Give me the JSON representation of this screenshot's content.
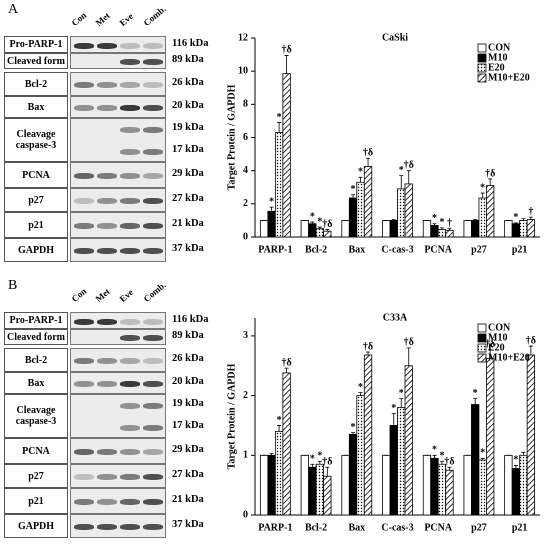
{
  "panels": [
    {
      "letter": "A",
      "lanes": [
        "Con",
        "Met",
        "Eve",
        "Comb."
      ],
      "rows": [
        {
          "label": "Pro-PARP-1",
          "kda": [
            "116 kDa"
          ]
        },
        {
          "label": "Cleaved form",
          "kda": [
            "89 kDa"
          ]
        },
        {
          "label": "Bcl-2",
          "kda": [
            "26 kDa"
          ]
        },
        {
          "label": "Bax",
          "kda": [
            "20 kDa"
          ]
        },
        {
          "label": "Cleavage caspase-3",
          "kda": [
            "19 kDa",
            "17 kDa"
          ]
        },
        {
          "label": "PCNA",
          "kda": [
            "29 kDa"
          ]
        },
        {
          "label": "p27",
          "kda": [
            "27 kDa"
          ]
        },
        {
          "label": "p21",
          "kda": [
            "21 kDa"
          ]
        },
        {
          "label": "GAPDH",
          "kda": [
            "37 kDa"
          ]
        }
      ]
    },
    {
      "letter": "B",
      "lanes": [
        "Con",
        "Met",
        "Eve",
        "Comb."
      ],
      "rows": [
        {
          "label": "Pro-PARP-1",
          "kda": [
            "116 kDa"
          ]
        },
        {
          "label": "Cleaved form",
          "kda": [
            "89 kDa"
          ]
        },
        {
          "label": "Bcl-2",
          "kda": [
            "26 kDa"
          ]
        },
        {
          "label": "Bax",
          "kda": [
            "20 kDa"
          ]
        },
        {
          "label": "Cleavage caspase-3",
          "kda": [
            "19 kDa",
            "17 kDa"
          ]
        },
        {
          "label": "PCNA",
          "kda": [
            "29 kDa"
          ]
        },
        {
          "label": "p27",
          "kda": [
            "27 kDa"
          ]
        },
        {
          "label": "p21",
          "kda": [
            "21 kDa"
          ]
        },
        {
          "label": "GAPDH",
          "kda": [
            "37 kDa"
          ]
        }
      ]
    }
  ],
  "chart_data": [
    {
      "type": "bar",
      "title": "CaSki",
      "y_label": "Target Protein / GAPDH",
      "categories": [
        "PARP-1",
        "Bcl-2",
        "Bax",
        "C-cas-3",
        "PCNA",
        "p27",
        "p21"
      ],
      "ylim": [
        0,
        12
      ],
      "yticks": [
        0,
        2,
        4,
        6,
        8,
        10,
        12
      ],
      "legend": "top-right",
      "series": [
        {
          "name": "CON",
          "color": "#ffffff",
          "pattern": "solid",
          "values": [
            1,
            1,
            1,
            1,
            1,
            1,
            1
          ],
          "errors": [
            0,
            0,
            0,
            0,
            0,
            0,
            0
          ],
          "annotations": [
            null,
            null,
            null,
            null,
            null,
            null,
            null
          ]
        },
        {
          "name": "M10",
          "color": "#000000",
          "pattern": "solid",
          "values": [
            1.55,
            0.8,
            2.35,
            1.0,
            0.7,
            1.0,
            0.8
          ],
          "errors": [
            0.25,
            0.1,
            0.2,
            0.05,
            0.1,
            0.05,
            0.05
          ],
          "annotations": [
            "*",
            "*",
            "*",
            null,
            "*",
            null,
            "*"
          ]
        },
        {
          "name": "E20",
          "color": "#000000",
          "pattern": "dots",
          "values": [
            6.3,
            0.5,
            3.3,
            2.9,
            0.45,
            2.35,
            1.0
          ],
          "errors": [
            0.6,
            0.1,
            0.3,
            0.8,
            0.1,
            0.3,
            0.1
          ],
          "annotations": [
            "*",
            "*",
            "*",
            "*",
            "*",
            "*",
            null
          ]
        },
        {
          "name": "M10+E20",
          "color": "#000000",
          "pattern": "hatch",
          "values": [
            9.85,
            0.35,
            4.25,
            3.2,
            0.4,
            3.1,
            1.05
          ],
          "errors": [
            1.1,
            0.1,
            0.5,
            0.8,
            0.1,
            0.4,
            0.15
          ],
          "annotations": [
            "†δ",
            "†δ",
            "†δ",
            "†δ",
            "†",
            "†δ",
            "†"
          ]
        }
      ]
    },
    {
      "type": "bar",
      "title": "C33A",
      "y_label": "Target Protein / GAPDH",
      "categories": [
        "PARP-1",
        "Bcl-2",
        "Bax",
        "C-cas-3",
        "PCNA",
        "p27",
        "p21"
      ],
      "ylim": [
        0,
        3.3
      ],
      "yticks": [
        0,
        1,
        2,
        3
      ],
      "legend": "top-right",
      "series": [
        {
          "name": "CON",
          "color": "#ffffff",
          "pattern": "solid",
          "values": [
            1,
            1,
            1,
            1,
            1,
            1,
            1
          ],
          "errors": [
            0,
            0,
            0,
            0,
            0,
            0,
            0
          ],
          "annotations": [
            null,
            null,
            null,
            null,
            null,
            null,
            null
          ]
        },
        {
          "name": "M10",
          "color": "#000000",
          "pattern": "solid",
          "values": [
            1.0,
            0.8,
            1.35,
            1.5,
            0.95,
            1.85,
            0.78
          ],
          "errors": [
            0.03,
            0.05,
            0.03,
            0.2,
            0.05,
            0.1,
            0.05
          ],
          "annotations": [
            null,
            "*",
            "*",
            "*",
            "*",
            "*",
            "*"
          ]
        },
        {
          "name": "E20",
          "color": "#000000",
          "pattern": "dots",
          "values": [
            1.4,
            0.85,
            2.0,
            1.8,
            0.85,
            0.92,
            1.0
          ],
          "errors": [
            0.1,
            0.05,
            0.05,
            0.15,
            0.05,
            0.03,
            0.05
          ],
          "annotations": [
            "*",
            "*",
            "*",
            "*",
            "*",
            "*",
            null
          ]
        },
        {
          "name": "M10+E20",
          "color": "#000000",
          "pattern": "hatch",
          "values": [
            2.38,
            0.65,
            2.68,
            2.5,
            0.75,
            2.62,
            2.68
          ],
          "errors": [
            0.08,
            0.15,
            0.05,
            0.3,
            0.05,
            0.15,
            0.15
          ],
          "annotations": [
            "†δ",
            "†δ",
            "†δ",
            "†δ",
            "†δ",
            "†δ",
            "†δ"
          ]
        }
      ]
    }
  ]
}
